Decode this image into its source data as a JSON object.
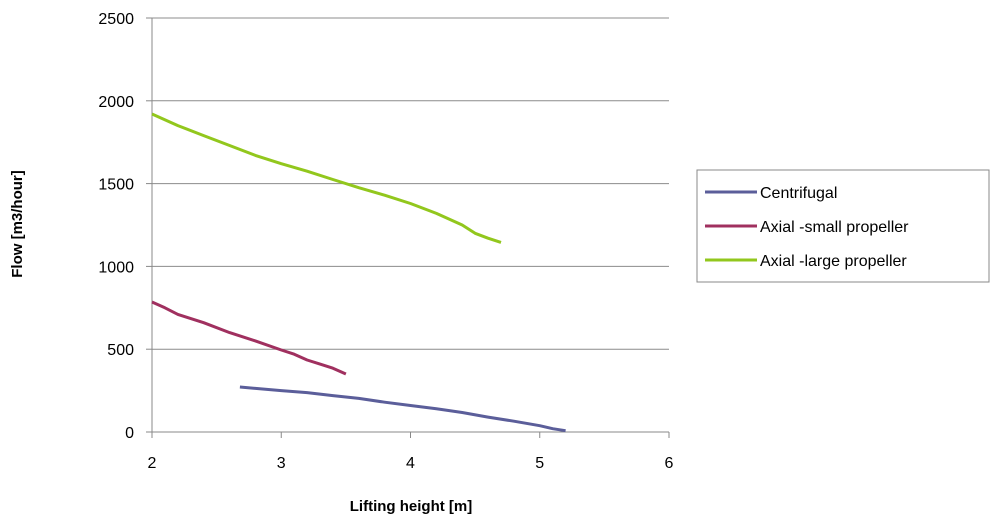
{
  "chart_data": {
    "type": "line",
    "xlabel": "Lifting height [m]",
    "ylabel": "Flow [m3/hour]",
    "xlim": [
      2,
      6
    ],
    "ylim": [
      0,
      2500
    ],
    "xticks": [
      "2",
      "3",
      "4",
      "5",
      "6"
    ],
    "yticks": [
      "0",
      "500",
      "1000",
      "1500",
      "2000",
      "2500"
    ],
    "grid": "horizontal",
    "legend_position": "right",
    "series": [
      {
        "name": "Centrifugal",
        "color": "#5b5e9a",
        "x": [
          2.68,
          2.8,
          3.0,
          3.2,
          3.4,
          3.6,
          3.8,
          4.0,
          4.2,
          4.4,
          4.6,
          4.8,
          5.0,
          5.1,
          5.2
        ],
        "y": [
          272,
          263,
          250,
          238,
          220,
          203,
          180,
          160,
          140,
          118,
          90,
          65,
          38,
          20,
          8
        ]
      },
      {
        "name": "Axial -small propeller",
        "color": "#a0305f",
        "x": [
          2.0,
          2.1,
          2.2,
          2.4,
          2.6,
          2.8,
          3.0,
          3.1,
          3.2,
          3.3,
          3.4,
          3.5
        ],
        "y": [
          785,
          750,
          710,
          660,
          600,
          550,
          495,
          470,
          435,
          410,
          385,
          350
        ]
      },
      {
        "name": "Axial -large propeller",
        "color": "#92c71d",
        "x": [
          2.0,
          2.2,
          2.4,
          2.6,
          2.8,
          3.0,
          3.2,
          3.4,
          3.6,
          3.8,
          4.0,
          4.2,
          4.4,
          4.5,
          4.6,
          4.7
        ],
        "y": [
          1920,
          1850,
          1790,
          1730,
          1670,
          1620,
          1575,
          1525,
          1475,
          1430,
          1380,
          1320,
          1250,
          1200,
          1170,
          1145
        ]
      }
    ]
  }
}
